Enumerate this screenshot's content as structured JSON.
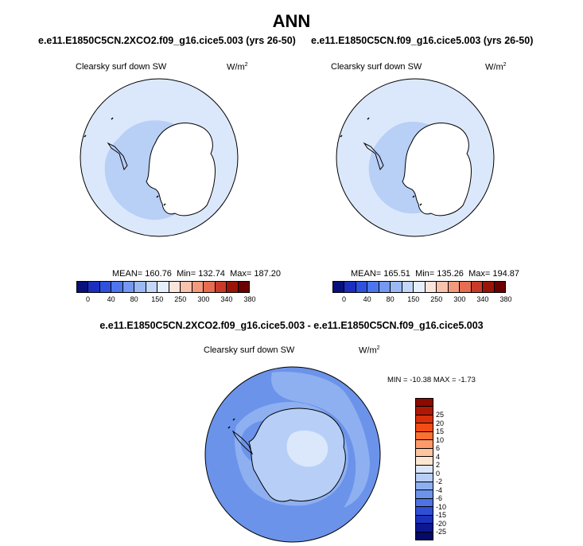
{
  "title": "ANN",
  "panels": [
    {
      "case": "e.e11.E1850C5CN.2XCO2.f09_g16.cice5.003 (yrs 26-50)",
      "variable": "Clearsky surf down SW",
      "units": "W/m",
      "units_exp": "2",
      "stats": {
        "mean_label": "MEAN=",
        "mean": "160.76",
        "min_label": "Min=",
        "min": "132.74",
        "max_label": "Max=",
        "max": "187.20"
      }
    },
    {
      "case": "e.e11.E1850C5CN.f09_g16.cice5.003 (yrs 26-50)",
      "variable": "Clearsky surf down SW",
      "units": "W/m",
      "units_exp": "2",
      "stats": {
        "mean_label": "MEAN=",
        "mean": "165.51",
        "min_label": "Min=",
        "min": "135.26",
        "max_label": "Max=",
        "max": "194.87"
      }
    }
  ],
  "abs_colorbar": {
    "colors": [
      "#08107c",
      "#1c2ebf",
      "#2e52e0",
      "#4d76ee",
      "#7399f2",
      "#9bb9f5",
      "#c3d7f8",
      "#e6eefc",
      "#fce4da",
      "#f8c2ad",
      "#f19a7e",
      "#e66c52",
      "#c93a2a",
      "#9a1408",
      "#6b0000"
    ],
    "ticks": [
      "0",
      "40",
      "80",
      "150",
      "250",
      "300",
      "340",
      "380"
    ]
  },
  "diff": {
    "title": "e.e11.E1850C5CN.2XCO2.f09_g16.cice5.003 - e.e11.E1850C5CN.f09_g16.cice5.003",
    "variable": "Clearsky surf down SW",
    "units": "W/m",
    "units_exp": "2",
    "minmax": "MIN = -10.38 MAX =  -1.73",
    "colorbar": {
      "colors": [
        "#8a0a00",
        "#b01806",
        "#d9300c",
        "#f24d14",
        "#fb7134",
        "#fc9a6a",
        "#fdc49e",
        "#fde6d2",
        "#dbe7fb",
        "#b7cff7",
        "#8eb0f1",
        "#6b93ea",
        "#4c72e3",
        "#2f4fd6",
        "#1c32bd",
        "#0c1790",
        "#040a66"
      ],
      "ticks": [
        "25",
        "20",
        "15",
        "10",
        "6",
        "4",
        "2",
        "0",
        "-2",
        "-4",
        "-6",
        "-10",
        "-15",
        "-20",
        "-25"
      ]
    }
  },
  "map_colors": {
    "outer": "#dbe8fb",
    "inner": "#b8cff6",
    "diff_main": "#6b93ea",
    "diff_light": "#8eb0f1",
    "diff_lighter": "#b7cff7",
    "diff_pale": "#dbe7fb",
    "land": "#ffffff"
  }
}
